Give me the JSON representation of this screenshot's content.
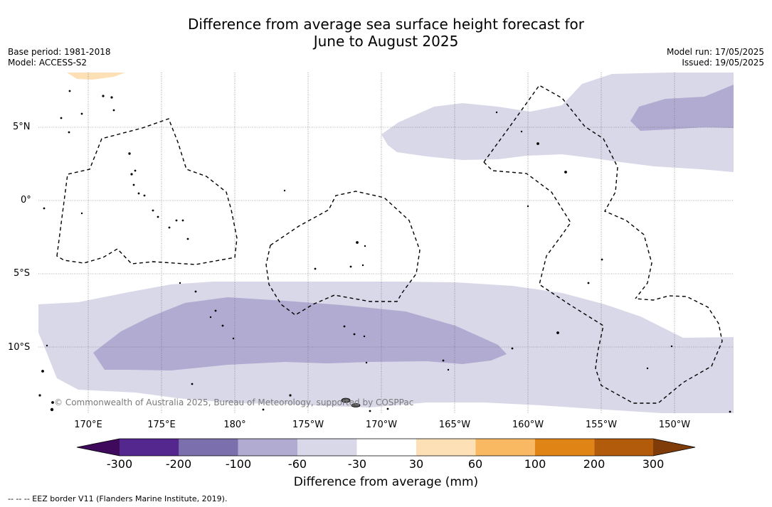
{
  "header": {
    "title_line1": "Difference from average sea surface height forecast for",
    "title_line2": "June to August 2025",
    "base_period": "Base period: 1981-2018",
    "model": "Model: ACCESS-S2",
    "model_run": "Model run: 17/05/2025",
    "issued": "Issued: 19/05/2025"
  },
  "map": {
    "lat_labels": [
      "5°N",
      "0°",
      "5°S",
      "10°S"
    ],
    "lon_labels": [
      "170°E",
      "175°E",
      "180°",
      "175°W",
      "170°W",
      "165°W",
      "160°W",
      "155°W",
      "150°W"
    ],
    "copyright": "© Commonwealth of Australia 2025, Bureau of Meteorology, supported by COSPPac",
    "colors": {
      "pale_purple": "#d8d8e9",
      "mid_purple": "#b1aad1",
      "pale_orange": "#fde0b5",
      "land": "#000000"
    }
  },
  "colorbar": {
    "label": "Difference from average (mm)",
    "ticks": [
      "-300",
      "-200",
      "-100",
      "-60",
      "-30",
      "30",
      "60",
      "100",
      "200",
      "300"
    ],
    "colors": [
      "#3f0a5c",
      "#54278f",
      "#7b6fae",
      "#b1aad1",
      "#d8d8e9",
      "#ffffff",
      "#fde0b5",
      "#f9b862",
      "#e08416",
      "#b15b0b",
      "#7f3b08"
    ]
  },
  "footnote": "--  --  -- EEZ border V11 (Flanders Marine Institute, 2019)."
}
